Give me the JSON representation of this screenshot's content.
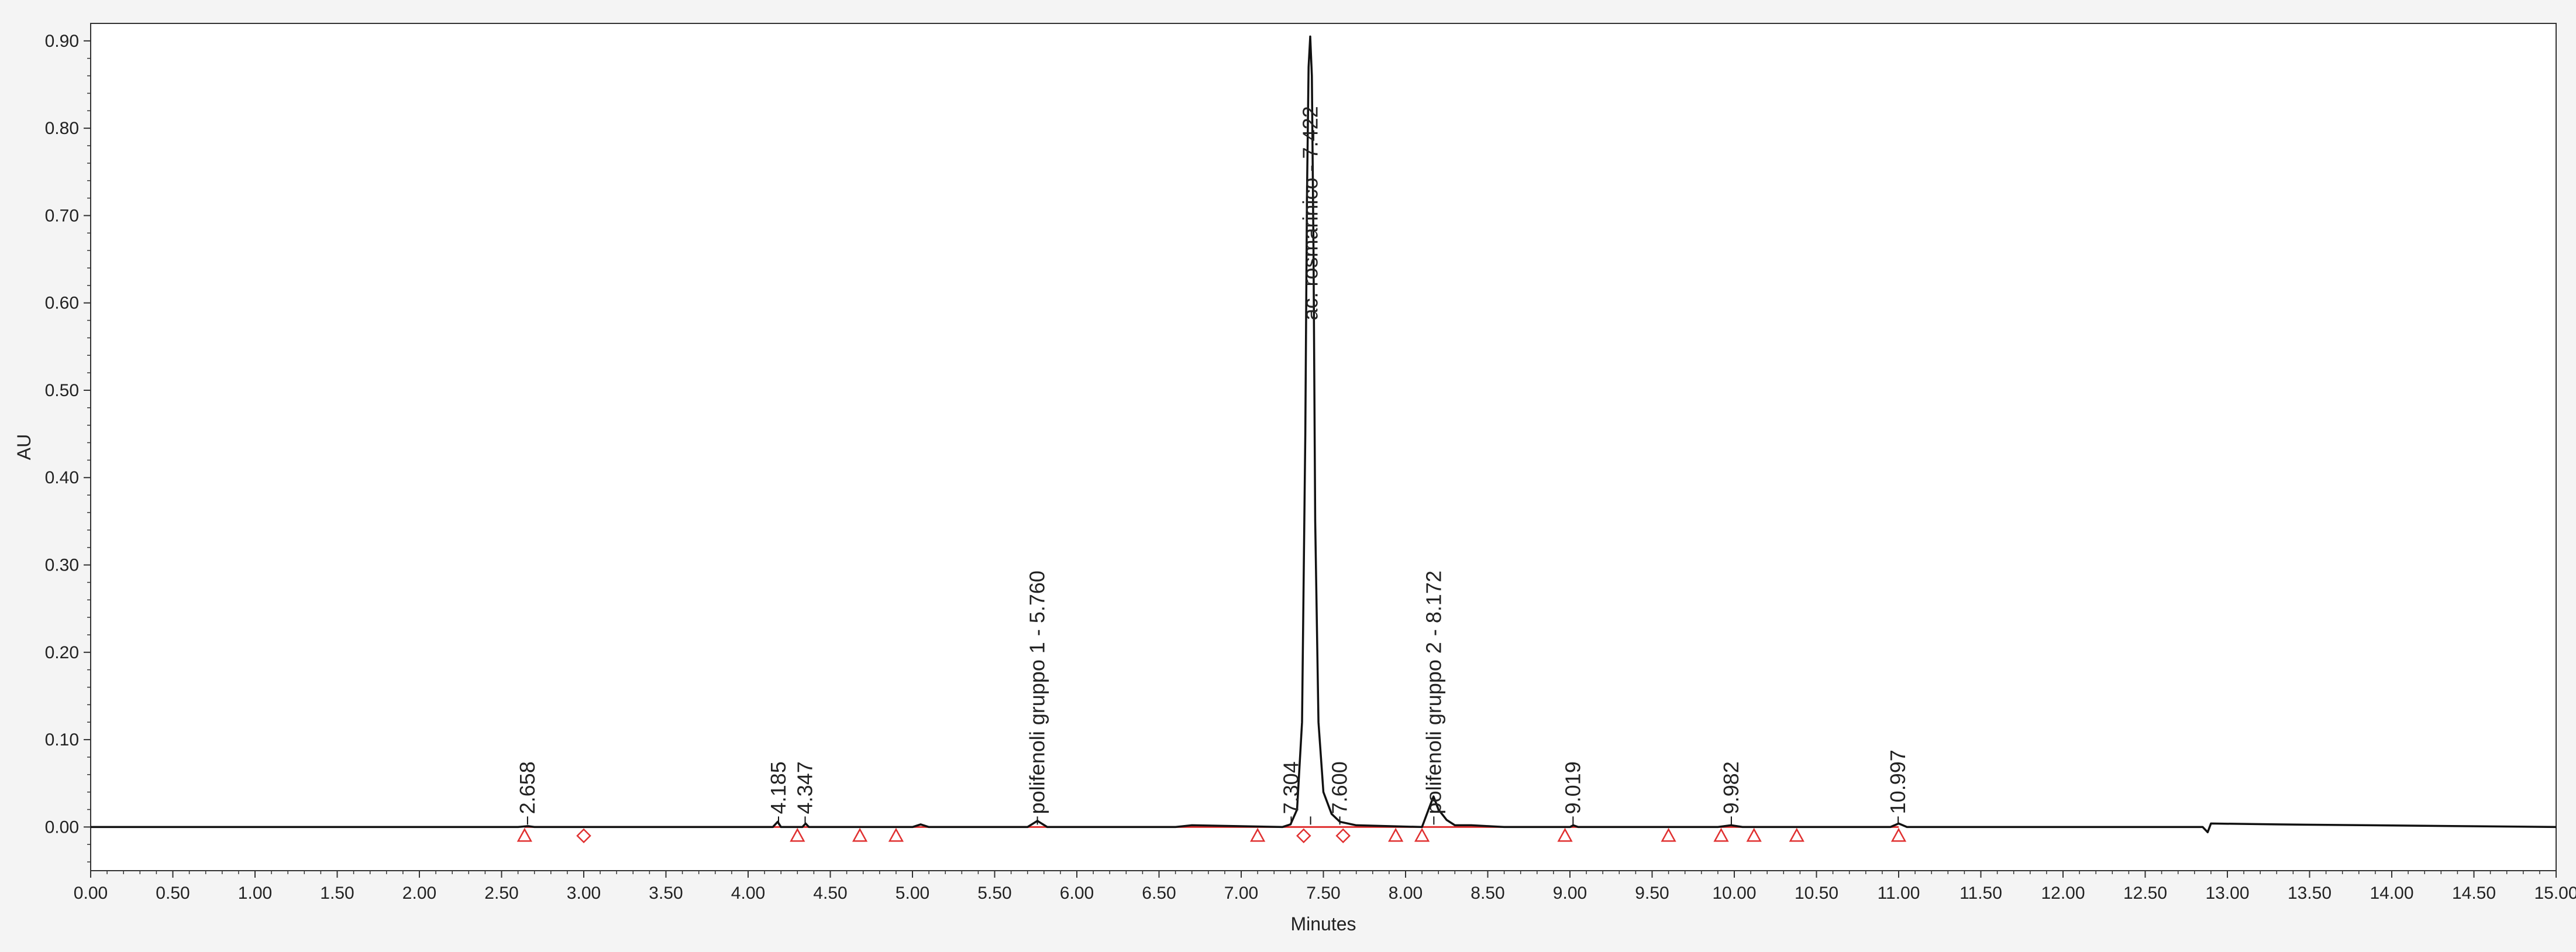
{
  "chart_data": {
    "type": "line",
    "title": "",
    "xlabel": "Minutes",
    "ylabel": "AU",
    "xlim": [
      0.0,
      15.0
    ],
    "ylim": [
      -0.05,
      0.92
    ],
    "x_ticks": [
      0.0,
      0.5,
      1.0,
      1.5,
      2.0,
      2.5,
      3.0,
      3.5,
      4.0,
      4.5,
      5.0,
      5.5,
      6.0,
      6.5,
      7.0,
      7.5,
      8.0,
      8.5,
      9.0,
      9.5,
      10.0,
      10.5,
      11.0,
      11.5,
      12.0,
      12.5,
      13.0,
      13.5,
      14.0,
      14.5,
      15.0
    ],
    "x_tick_labels": [
      "0.00",
      "0.50",
      "1.00",
      "1.50",
      "2.00",
      "2.50",
      "3.00",
      "3.50",
      "4.00",
      "4.50",
      "5.00",
      "5.50",
      "6.00",
      "6.50",
      "7.00",
      "7.50",
      "8.00",
      "8.50",
      "9.00",
      "9.50",
      "10.00",
      "10.50",
      "11.00",
      "11.50",
      "12.00",
      "12.50",
      "13.00",
      "13.50",
      "14.00",
      "14.50",
      "15.00"
    ],
    "y_ticks": [
      0.0,
      0.1,
      0.2,
      0.3,
      0.4,
      0.5,
      0.6,
      0.7,
      0.8,
      0.9
    ],
    "y_tick_labels": [
      "0.00",
      "0.10",
      "0.20",
      "0.30",
      "0.40",
      "0.50",
      "0.60",
      "0.70",
      "0.80",
      "0.90"
    ],
    "grid": false,
    "series": [
      {
        "color": "#111111",
        "x": [
          0.0,
          2.6,
          2.66,
          2.7,
          4.15,
          4.18,
          4.2,
          4.33,
          4.35,
          4.37,
          5.0,
          5.05,
          5.1,
          5.7,
          5.76,
          5.82,
          6.6,
          6.7,
          7.25,
          7.3,
          7.34,
          7.37,
          7.39,
          7.4,
          7.41,
          7.42,
          7.43,
          7.44,
          7.45,
          7.47,
          7.5,
          7.55,
          7.6,
          7.7,
          8.1,
          8.14,
          8.17,
          8.2,
          8.25,
          8.3,
          8.4,
          8.5,
          8.6,
          9.0,
          9.02,
          9.05,
          9.9,
          9.98,
          10.05,
          10.5,
          10.95,
          11.0,
          11.05,
          11.2,
          12.85,
          12.88,
          12.9,
          13.3,
          15.0
        ],
        "y": [
          0.0,
          0.0,
          0.001,
          0.0,
          0.0,
          0.006,
          0.0,
          0.0,
          0.004,
          0.0,
          0.0,
          0.003,
          0.0,
          0.0,
          0.007,
          0.0,
          0.0,
          0.002,
          0.0,
          0.003,
          0.02,
          0.12,
          0.45,
          0.72,
          0.87,
          0.905,
          0.86,
          0.66,
          0.35,
          0.12,
          0.04,
          0.015,
          0.006,
          0.002,
          0.0,
          0.02,
          0.035,
          0.02,
          0.008,
          0.002,
          0.002,
          0.001,
          0.0,
          0.0,
          0.002,
          0.0,
          0.0,
          0.002,
          0.0,
          0.0,
          0.0,
          0.004,
          0.0,
          0.0,
          0.0,
          -0.006,
          0.004,
          0.003,
          0.0
        ]
      }
    ],
    "baseline": {
      "color": "#e03030",
      "x": [
        2.64,
        11.0
      ],
      "y": 0.0
    },
    "peak_labels": [
      {
        "text": "2.658",
        "x": 2.658
      },
      {
        "text": "4.185",
        "x": 4.185
      },
      {
        "text": "4.347",
        "x": 4.347
      },
      {
        "text": "polifenoli gruppo 1 - 5.760",
        "x": 5.76
      },
      {
        "text": "7.304",
        "x": 7.304
      },
      {
        "text": "ac. rosmarinico - 7.422",
        "x": 7.422
      },
      {
        "text": "7.600",
        "x": 7.6
      },
      {
        "text": "polifenoli gruppo 2 - 8.172",
        "x": 8.172
      },
      {
        "text": "9.019",
        "x": 9.019
      },
      {
        "text": "9.982",
        "x": 9.982
      },
      {
        "text": "10.997",
        "x": 10.997
      }
    ],
    "markers": [
      {
        "shape": "triangle",
        "x": 2.64
      },
      {
        "shape": "diamond",
        "x": 3.0
      },
      {
        "shape": "triangle",
        "x": 4.3
      },
      {
        "shape": "triangle",
        "x": 4.68
      },
      {
        "shape": "triangle",
        "x": 4.9
      },
      {
        "shape": "triangle",
        "x": 7.1
      },
      {
        "shape": "diamond",
        "x": 7.38
      },
      {
        "shape": "diamond",
        "x": 7.62
      },
      {
        "shape": "triangle",
        "x": 7.94
      },
      {
        "shape": "triangle",
        "x": 8.1
      },
      {
        "shape": "triangle",
        "x": 8.97
      },
      {
        "shape": "triangle",
        "x": 9.6
      },
      {
        "shape": "triangle",
        "x": 9.92
      },
      {
        "shape": "triangle",
        "x": 10.12
      },
      {
        "shape": "triangle",
        "x": 10.38
      },
      {
        "shape": "triangle",
        "x": 11.0
      }
    ],
    "marker_color": "#e03030"
  }
}
